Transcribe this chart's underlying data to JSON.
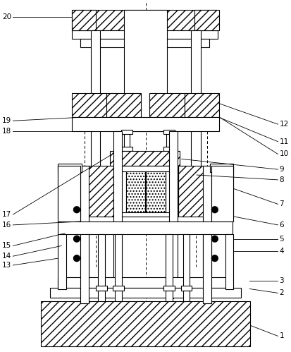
{
  "white": "#ffffff",
  "black": "#000000",
  "lw": 0.8,
  "lw2": 1.2,
  "fig_w": 4.13,
  "fig_h": 4.99,
  "dpi": 100
}
